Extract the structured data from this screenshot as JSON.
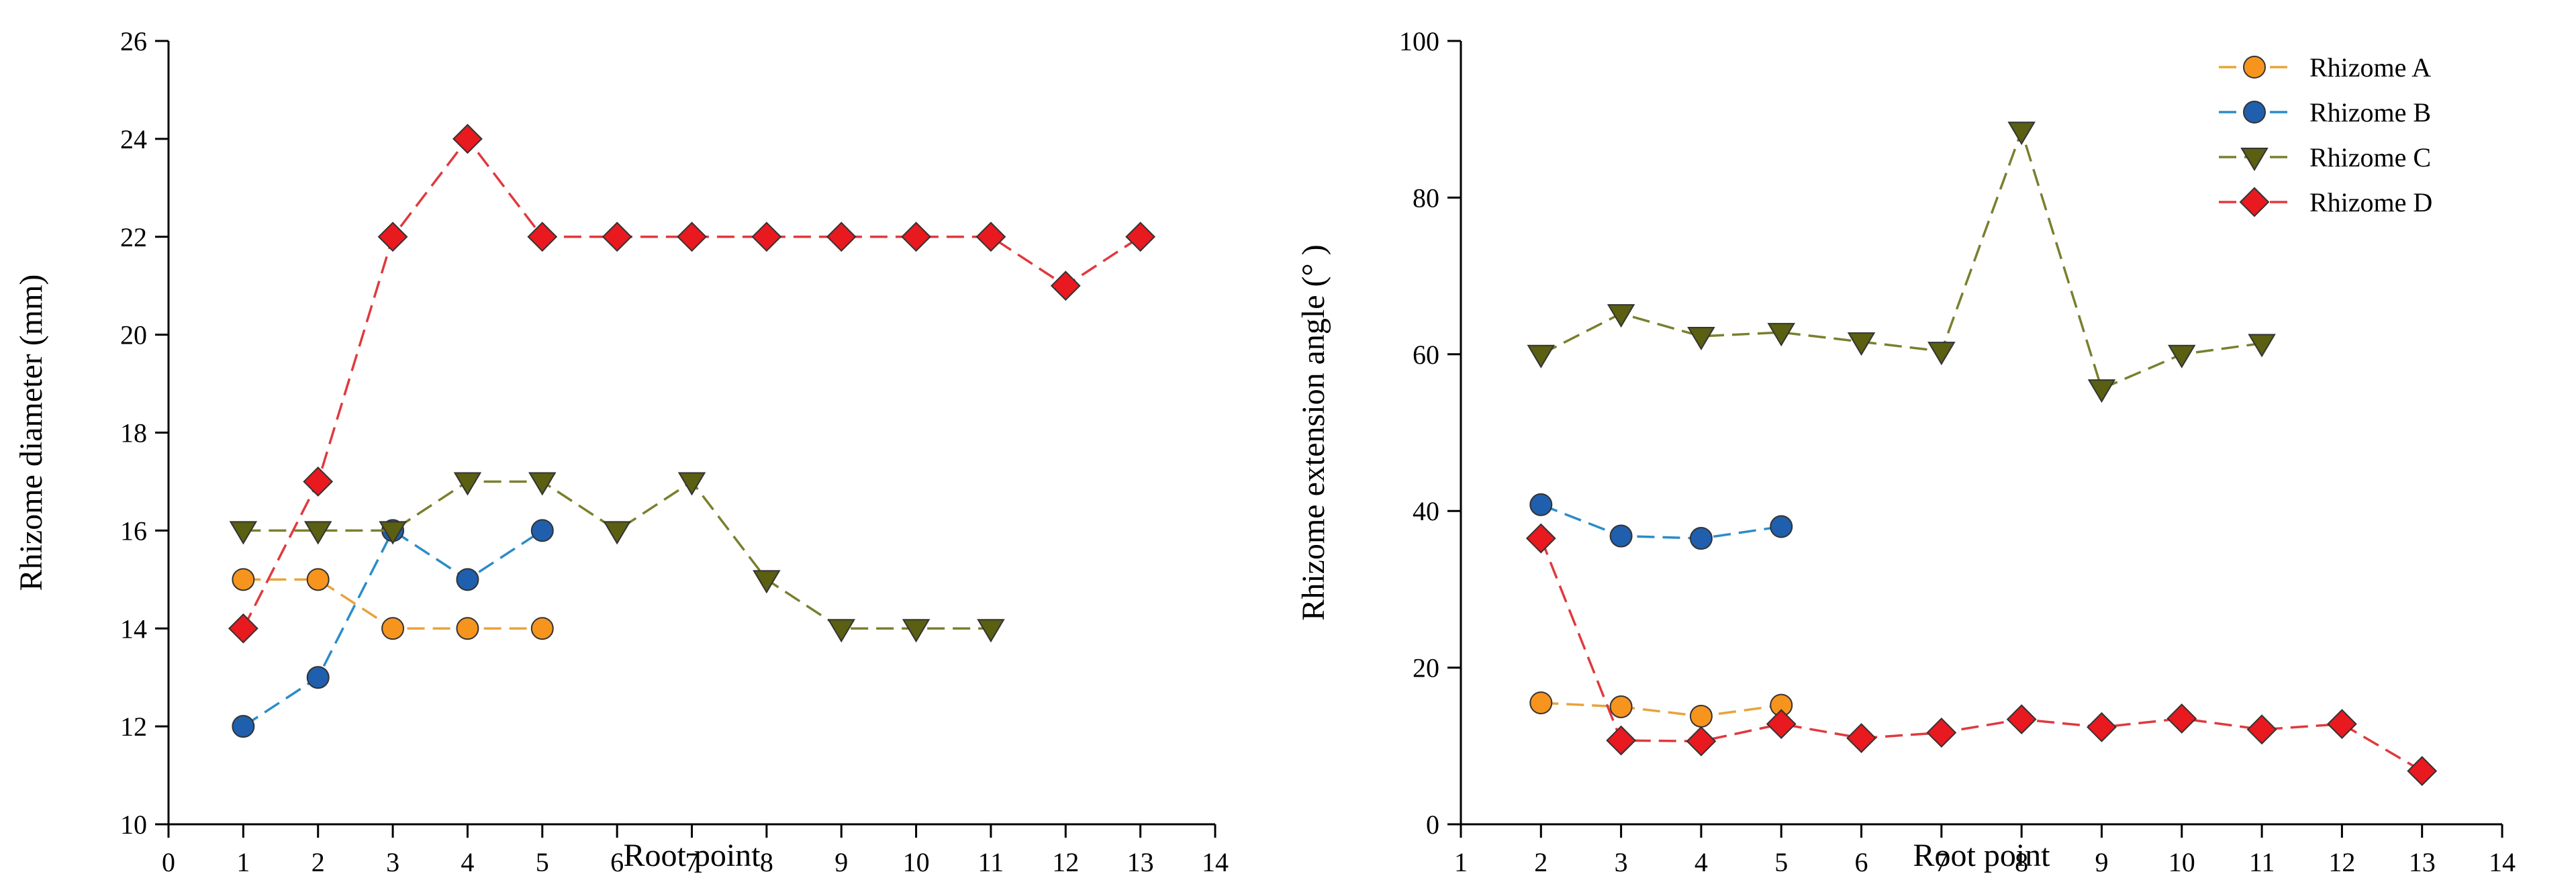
{
  "chart_data": [
    {
      "type": "line",
      "title": "",
      "xlabel": "Root point",
      "ylabel": "Rhizome diameter (mm)",
      "xlim": [
        0,
        14
      ],
      "ylim": [
        10,
        26
      ],
      "xticks": [
        0,
        1,
        2,
        3,
        4,
        5,
        6,
        7,
        8,
        9,
        10,
        11,
        12,
        13,
        14
      ],
      "yticks": [
        10,
        12,
        14,
        16,
        18,
        20,
        22,
        24,
        26
      ],
      "grid": false,
      "series": [
        {
          "name": "Rhizome A",
          "x": [
            1,
            2,
            3,
            4,
            5
          ],
          "values": [
            15,
            15,
            14,
            14,
            14
          ]
        },
        {
          "name": "Rhizome B",
          "x": [
            1,
            2,
            3,
            4,
            5
          ],
          "values": [
            12,
            13,
            16,
            15,
            16
          ]
        },
        {
          "name": "Rhizome C",
          "x": [
            1,
            2,
            3,
            4,
            5,
            6,
            7,
            8,
            9,
            10,
            11
          ],
          "values": [
            16,
            16,
            16,
            17,
            17,
            16,
            17,
            15,
            14,
            14,
            14
          ]
        },
        {
          "name": "Rhizome D",
          "x": [
            1,
            2,
            3,
            4,
            5,
            6,
            7,
            8,
            9,
            10,
            11,
            12,
            13
          ],
          "values": [
            14,
            17,
            22,
            24,
            22,
            22,
            22,
            22,
            22,
            22,
            22,
            21,
            22
          ]
        }
      ]
    },
    {
      "type": "line",
      "title": "",
      "xlabel": "Root point",
      "ylabel": "Rhizome extension angle (° )",
      "xlim": [
        1,
        14
      ],
      "ylim": [
        0,
        100
      ],
      "xticks": [
        1,
        2,
        3,
        4,
        5,
        6,
        7,
        8,
        9,
        10,
        11,
        12,
        13,
        14
      ],
      "yticks": [
        0,
        20,
        40,
        60,
        80,
        100
      ],
      "grid": false,
      "series": [
        {
          "name": "Rhizome A",
          "x": [
            2,
            3,
            4,
            5
          ],
          "values": [
            15.5,
            15,
            13.8,
            15.2
          ]
        },
        {
          "name": "Rhizome B",
          "x": [
            2,
            3,
            4,
            5
          ],
          "values": [
            40.8,
            36.8,
            36.5,
            38
          ]
        },
        {
          "name": "Rhizome C",
          "x": [
            2,
            3,
            4,
            5,
            6,
            7,
            8,
            9,
            10,
            11
          ],
          "values": [
            60,
            65.2,
            62.3,
            62.8,
            61.6,
            60.4,
            88.5,
            55.6,
            60,
            61.4
          ]
        },
        {
          "name": "Rhizome D",
          "x": [
            2,
            3,
            4,
            5,
            6,
            7,
            8,
            9,
            10,
            11,
            12,
            13
          ],
          "values": [
            36.5,
            10.7,
            10.6,
            12.8,
            11,
            11.7,
            13.4,
            12.4,
            13.5,
            12.1,
            12.8,
            6.8
          ]
        }
      ]
    }
  ],
  "legend": {
    "placement": "right",
    "entries": [
      {
        "label": "Rhizome A",
        "marker": "circle",
        "color": "#F7941D",
        "line_color": "#E8A33A"
      },
      {
        "label": "Rhizome B",
        "marker": "circle",
        "color": "#1F5FAD",
        "line_color": "#2B8CC8"
      },
      {
        "label": "Rhizome C",
        "marker": "triangle-down",
        "color": "#5A5F12",
        "line_color": "#7A7F2E"
      },
      {
        "label": "Rhizome D",
        "marker": "diamond",
        "color": "#E8191F",
        "line_color": "#E0393E"
      }
    ]
  }
}
